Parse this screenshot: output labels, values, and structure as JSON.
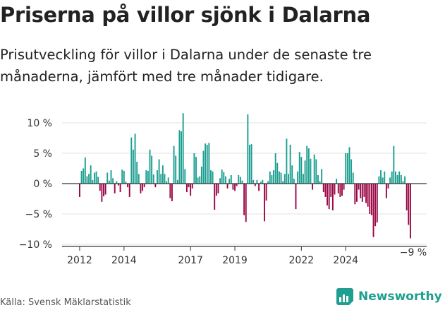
{
  "title": "Priserna på villor sjönk i Dalarna",
  "subtitle": "Prisutveckling för villor i Dalarna under de senaste tre månaderna, jämfört med tre månader tidigare.",
  "source": "Källa: Svensk Mäklarstatistik",
  "brand": "Newsworthy",
  "colors": {
    "positive": "#1a9e90",
    "negative": "#990645",
    "brand": "#1f9f8f"
  },
  "chart_data": {
    "type": "bar",
    "title": "Priserna på villor sjönk i Dalarna",
    "xlabel": "",
    "ylabel": "",
    "ylim": [
      -10,
      12
    ],
    "y_ticks": [
      10,
      5,
      0,
      -5,
      -10
    ],
    "y_tick_labels": [
      "10 %",
      "5 %",
      "0 %",
      "−5 %",
      "−10 %"
    ],
    "x_tick_labels": [
      {
        "label": "2012",
        "year": 2012
      },
      {
        "label": "2014",
        "year": 2014
      },
      {
        "label": "2017",
        "year": 2017
      },
      {
        "label": "2019",
        "year": 2019
      },
      {
        "label": "2022",
        "year": 2022
      },
      {
        "label": "2024",
        "year": 2024
      }
    ],
    "x_start": 2012,
    "points_per_year": 12,
    "annotation": {
      "text": "−9 %",
      "value": -9
    },
    "values": [
      -2.2,
      2.1,
      2.5,
      4.3,
      1.2,
      1.6,
      3.0,
      0.6,
      1.8,
      2.0,
      1.1,
      -1.2,
      -3.0,
      -2.1,
      -1.8,
      1.8,
      0.5,
      2.2,
      0.9,
      -1.6,
      0.4,
      -0.3,
      -1.4,
      2.3,
      2.1,
      0.3,
      -0.6,
      -2.2,
      7.6,
      5.6,
      8.2,
      3.6,
      1.6,
      -1.6,
      -1.2,
      -0.6,
      2.2,
      2.1,
      5.6,
      4.6,
      1.5,
      -0.6,
      2.2,
      4.0,
      1.6,
      3.0,
      1.6,
      0.4,
      1.0,
      -2.4,
      -2.9,
      6.2,
      4.6,
      0.6,
      8.8,
      8.6,
      11.6,
      2.4,
      -1.4,
      -0.6,
      -2.0,
      -0.8,
      5.0,
      4.4,
      1.0,
      1.2,
      2.8,
      5.4,
      6.6,
      6.4,
      6.7,
      2.2,
      2.0,
      -4.3,
      -2.0,
      -1.6,
      0.9,
      2.3,
      1.9,
      1.2,
      -0.8,
      0.8,
      1.4,
      -1.0,
      -1.2,
      -0.4,
      1.4,
      1.1,
      0.5,
      -5.2,
      -6.3,
      11.4,
      6.4,
      6.5,
      0.6,
      -0.4,
      0.6,
      -1.2,
      0.3,
      0.6,
      -6.2,
      -2.8,
      0.4,
      2.0,
      1.4,
      2.2,
      5.0,
      3.4,
      2.0,
      1.8,
      0.4,
      1.6,
      7.4,
      1.6,
      6.4,
      3.0,
      0.8,
      -4.2,
      2.0,
      5.2,
      4.4,
      1.6,
      3.8,
      6.2,
      5.8,
      4.1,
      -1.0,
      4.8,
      4.0,
      1.4,
      0.4,
      2.4,
      -1.4,
      -2.2,
      -3.6,
      -4.2,
      -2.2,
      -4.4,
      -1.8,
      0.8,
      -1.6,
      -2.2,
      -2.0,
      -1.0,
      5.0,
      5.0,
      6.0,
      4.0,
      1.8,
      -3.4,
      -3.0,
      -1.0,
      -2.4,
      -3.0,
      -2.2,
      -3.2,
      -3.8,
      -5.0,
      -5.2,
      -8.8,
      -7.0,
      -6.4,
      1.2,
      2.2,
      1.0,
      2.0,
      -2.4,
      -0.8,
      1.0,
      2.0,
      6.2,
      2.0,
      1.4,
      2.0,
      1.4,
      0.4,
      1.2,
      -4.4,
      -6.8,
      -9.0
    ]
  }
}
